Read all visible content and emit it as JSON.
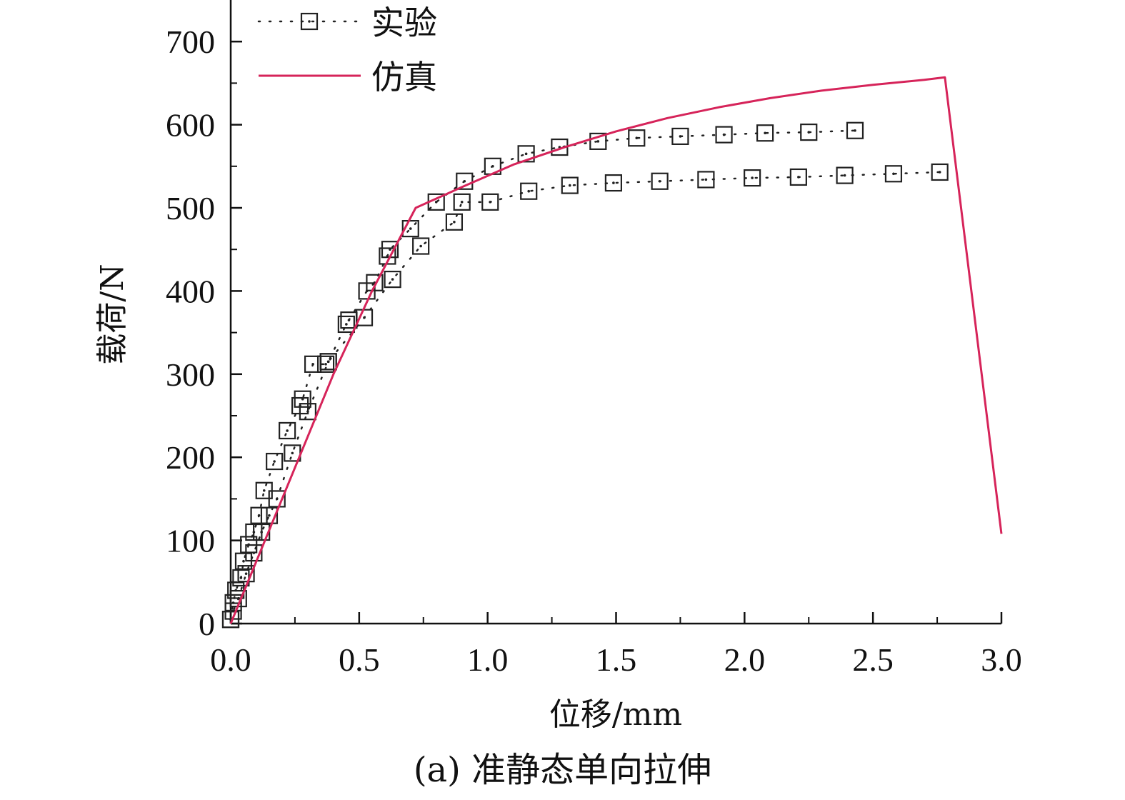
{
  "caption": "(a) 准静态单向拉伸",
  "chart_data": {
    "type": "line",
    "xlabel": "位移/mm",
    "ylabel": "载荷/N",
    "xlim": [
      0,
      3.0
    ],
    "ylim": [
      0,
      750
    ],
    "xticks": [
      "0.0",
      "0.5",
      "1.0",
      "1.5",
      "2.0",
      "2.5",
      "3.0"
    ],
    "yticks": [
      "0",
      "100",
      "200",
      "300",
      "400",
      "500",
      "600",
      "700"
    ],
    "grid": false,
    "legend_position": "top-left",
    "series": [
      {
        "name": "实验",
        "style": "dotted-square-markers",
        "color": "#222222",
        "curves": [
          {
            "x": [
              0.0,
              0.01,
              0.02,
              0.04,
              0.05,
              0.07,
              0.09,
              0.11,
              0.13,
              0.17,
              0.22,
              0.27,
              0.28,
              0.32,
              0.37,
              0.38,
              0.45,
              0.46,
              0.53,
              0.56,
              0.61,
              0.62,
              0.7,
              0.8,
              0.91,
              1.02,
              1.15,
              1.28,
              1.43,
              1.58,
              1.75,
              1.92,
              2.08,
              2.25,
              2.43
            ],
            "y": [
              5,
              25,
              40,
              55,
              75,
              95,
              110,
              130,
              160,
              195,
              232,
              262,
              270,
              312,
              312,
              315,
              360,
              365,
              400,
              410,
              442,
              450,
              475,
              507,
              532,
              550,
              565,
              573,
              580,
              584,
              586,
              588,
              590,
              591,
              593
            ]
          },
          {
            "x": [
              0.0,
              0.01,
              0.03,
              0.06,
              0.09,
              0.12,
              0.15,
              0.18,
              0.24,
              0.3,
              0.38,
              0.52,
              0.63,
              0.74,
              0.87,
              0.9,
              1.01,
              1.16,
              1.32,
              1.49,
              1.67,
              1.85,
              2.03,
              2.21,
              2.39,
              2.58,
              2.76
            ],
            "y": [
              5,
              15,
              30,
              60,
              85,
              110,
              130,
              150,
              205,
              255,
              315,
              368,
              414,
              454,
              483,
              507,
              507,
              520,
              527,
              530,
              532,
              534,
              536,
              537,
              539,
              541,
              543
            ]
          }
        ]
      },
      {
        "name": "仿真",
        "style": "solid",
        "color": "#d6245a",
        "x": [
          0.0,
          0.2,
          0.4,
          0.55,
          0.72,
          0.9,
          1.1,
          1.3,
          1.5,
          1.7,
          1.9,
          2.1,
          2.3,
          2.5,
          2.7,
          2.78,
          3.0
        ],
        "y": [
          0,
          150,
          300,
          400,
          500,
          525,
          552,
          573,
          592,
          608,
          621,
          632,
          641,
          648,
          654,
          657,
          108
        ]
      }
    ]
  }
}
